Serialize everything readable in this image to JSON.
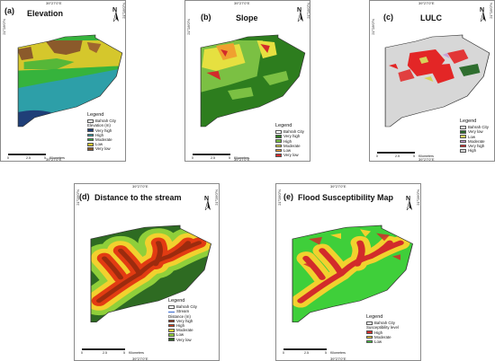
{
  "coords": {
    "lon": "39°27'0\"E",
    "lat": "21°28'0\"N"
  },
  "scale": {
    "ticks": [
      "0",
      "2.5",
      "5"
    ],
    "unit": "Kilometers"
  },
  "panels": [
    {
      "label": "(a)",
      "title": "Elevation",
      "legend_title": "Legend",
      "city": "Bahrah City",
      "subtitle": "Elevation (m)",
      "items": [
        {
          "label": "Very high",
          "color": "#1f3f78"
        },
        {
          "label": "High",
          "color": "#2d9fa8"
        },
        {
          "label": "Moderate",
          "color": "#36b33c"
        },
        {
          "label": "Low",
          "color": "#d5c72c"
        },
        {
          "label": "Very low",
          "color": "#8b5a2b"
        }
      ]
    },
    {
      "label": "(b)",
      "title": "Slope",
      "legend_title": "Legend",
      "city": "Bahrah City",
      "subtitle": "",
      "items": [
        {
          "label": "Very high",
          "color": "#2d7d1e"
        },
        {
          "label": "High",
          "color": "#7bc043"
        },
        {
          "label": "Moderate",
          "color": "#e6e040"
        },
        {
          "label": "Low",
          "color": "#f0a030"
        },
        {
          "label": "Very low",
          "color": "#d22b2b"
        }
      ]
    },
    {
      "label": "(c)",
      "title": "LULC",
      "legend_title": "Legend",
      "city": "Bahrah City",
      "subtitle": "",
      "items": [
        {
          "label": "Very low",
          "color": "#2f6e2f"
        },
        {
          "label": "Low",
          "color": "#d7d35a"
        },
        {
          "label": "Moderate",
          "color": "#c9a0d6"
        },
        {
          "label": "Very high",
          "color": "#e32626"
        },
        {
          "label": "High",
          "color": "#d7d7d7"
        }
      ]
    },
    {
      "label": "(d)",
      "title": "Distance to the stream",
      "legend_title": "Legend",
      "city": "Bahrah City",
      "stream": "Stream",
      "subtitle": "Distance (m)",
      "items": [
        {
          "label": "Very high",
          "color": "#9c2b0e"
        },
        {
          "label": "High",
          "color": "#e23b12"
        },
        {
          "label": "Moderate",
          "color": "#f2d12e"
        },
        {
          "label": "Low",
          "color": "#8fcf3a"
        },
        {
          "label": "Very low",
          "color": "#2e6b22"
        }
      ]
    },
    {
      "label": "(e)",
      "title": "Flood Susceptibility Map",
      "legend_title": "Legend",
      "city": "Bahrah City",
      "subtitle": "Susceptibility level",
      "items": [
        {
          "label": "High",
          "color": "#d22b2b"
        },
        {
          "label": "Moderate",
          "color": "#f2d12e"
        },
        {
          "label": "Low",
          "color": "#3fcf3a"
        }
      ]
    }
  ]
}
